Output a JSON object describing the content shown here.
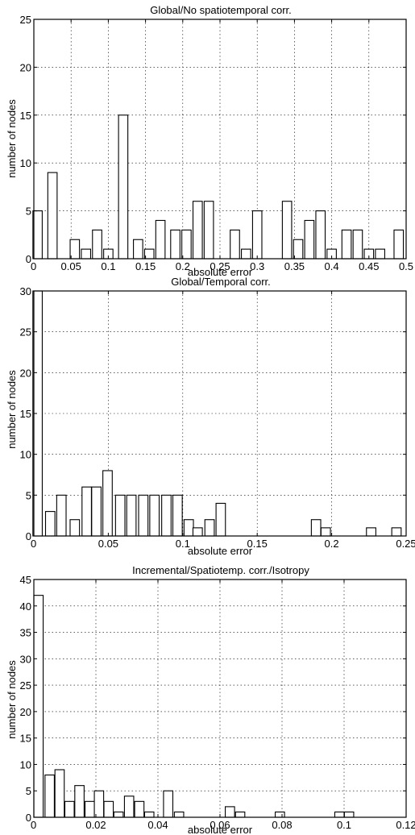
{
  "chart_data": [
    {
      "type": "bar",
      "title": "Global/No spatiotemporal corr.",
      "xlabel": "absolute error",
      "ylabel": "number of nodes",
      "xlim": [
        0,
        0.5
      ],
      "ylim": [
        0,
        25
      ],
      "grid": true,
      "x_ticks": [
        0,
        0.05,
        0.1,
        0.15,
        0.2,
        0.25,
        0.3,
        0.35,
        0.4,
        0.45,
        0.5
      ],
      "x_tick_labels": [
        "0",
        "0.05",
        "0.1",
        "0.15",
        "0.2",
        "0.25",
        "0.3",
        "0.35",
        "0.4",
        "0.45",
        "0.5"
      ],
      "y_ticks": [
        0,
        5,
        10,
        15,
        20,
        25
      ],
      "y_tick_labels": [
        "0",
        "5",
        "10",
        "15",
        "20",
        "25"
      ],
      "bar_width": 0.0125,
      "x": [
        0.005,
        0.025,
        0.055,
        0.07,
        0.085,
        0.1,
        0.12,
        0.14,
        0.155,
        0.17,
        0.19,
        0.205,
        0.22,
        0.235,
        0.27,
        0.285,
        0.3,
        0.34,
        0.355,
        0.37,
        0.385,
        0.4,
        0.42,
        0.435,
        0.45,
        0.465,
        0.49
      ],
      "values": [
        5,
        9,
        2,
        1,
        3,
        1,
        15,
        2,
        1,
        4,
        3,
        3,
        6,
        6,
        3,
        1,
        5,
        6,
        2,
        4,
        5,
        1,
        3,
        3,
        1,
        1,
        3
      ]
    },
    {
      "type": "bar",
      "title": "Global/Temporal corr.",
      "xlabel": "absolute error",
      "ylabel": "number of nodes",
      "xlim": [
        0,
        0.25
      ],
      "ylim": [
        0,
        30
      ],
      "grid": true,
      "x_ticks": [
        0,
        0.05,
        0.1,
        0.15,
        0.2,
        0.25
      ],
      "x_tick_labels": [
        "0",
        "0.05",
        "0.1",
        "0.15",
        "0.2",
        "0.25"
      ],
      "y_ticks": [
        0,
        5,
        10,
        15,
        20,
        25,
        30
      ],
      "y_tick_labels": [
        "0",
        "5",
        "10",
        "15",
        "20",
        "25",
        "30"
      ],
      "bar_width": 0.0063,
      "x": [
        0.0025,
        0.011,
        0.0185,
        0.0275,
        0.0355,
        0.042,
        0.0495,
        0.058,
        0.0655,
        0.0735,
        0.081,
        0.089,
        0.0965,
        0.104,
        0.11,
        0.118,
        0.1255,
        0.1895,
        0.196,
        0.2265,
        0.2435
      ],
      "values": [
        30,
        3,
        5,
        2,
        6,
        6,
        8,
        5,
        5,
        5,
        5,
        5,
        5,
        2,
        1,
        2,
        4,
        2,
        1,
        1,
        1
      ]
    },
    {
      "type": "bar",
      "title": "Incremental/Spatiotemp. corr./Isotropy",
      "xlabel": "absolute error",
      "ylabel": "number of nodes",
      "xlim": [
        0,
        0.12
      ],
      "ylim": [
        0,
        45
      ],
      "grid": true,
      "x_ticks": [
        0,
        0.02,
        0.04,
        0.06,
        0.08,
        0.1,
        0.12
      ],
      "x_tick_labels": [
        "0",
        "0.02",
        "0.04",
        "0.06",
        "0.08",
        "0.1",
        "0.12"
      ],
      "y_ticks": [
        0,
        5,
        10,
        15,
        20,
        25,
        30,
        35,
        40,
        45
      ],
      "y_tick_labels": [
        "0",
        "5",
        "10",
        "15",
        "20",
        "25",
        "30",
        "35",
        "40",
        "45"
      ],
      "bar_width": 0.003,
      "x": [
        0.0015,
        0.0051,
        0.0083,
        0.0115,
        0.0147,
        0.018,
        0.021,
        0.0241,
        0.0273,
        0.0307,
        0.034,
        0.0372,
        0.0433,
        0.0468,
        0.0632,
        0.0665,
        0.0793,
        0.0985,
        0.1016
      ],
      "values": [
        42,
        8,
        9,
        3,
        6,
        3,
        5,
        3,
        1,
        4,
        3,
        1,
        5,
        1,
        2,
        1,
        1,
        1,
        1
      ]
    }
  ]
}
